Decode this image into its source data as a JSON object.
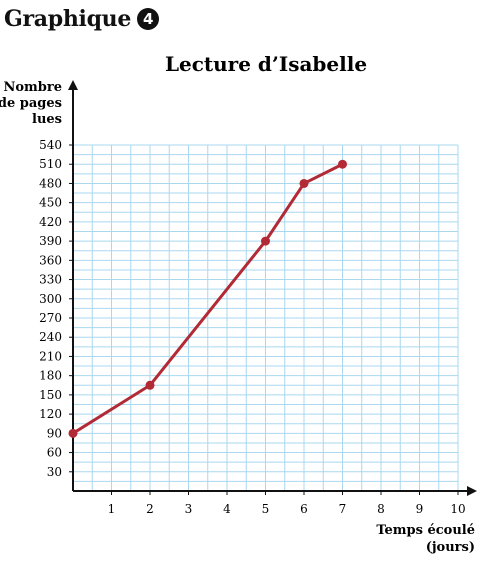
{
  "heading": {
    "text": "Graphique",
    "badge": "4"
  },
  "colors": {
    "grid": "#a9d8ef",
    "line": "#b22a36",
    "axis": "#111111"
  },
  "chart_data": {
    "type": "line",
    "title": "Lecture d’Isabelle",
    "ylabel": [
      "Nombre",
      "de pages",
      "lues"
    ],
    "xlabel": [
      "Temps écoulé",
      "(jours)"
    ],
    "xlim": [
      0,
      10
    ],
    "ylim": [
      0,
      540
    ],
    "x_ticks": [
      1,
      2,
      3,
      4,
      5,
      6,
      7,
      8,
      9,
      10
    ],
    "y_ticks": [
      30,
      60,
      90,
      120,
      150,
      180,
      210,
      240,
      270,
      300,
      330,
      360,
      390,
      420,
      450,
      480,
      510,
      540
    ],
    "grid": true,
    "series": [
      {
        "points": [
          [
            0,
            90
          ],
          [
            2,
            165
          ],
          [
            5,
            390
          ],
          [
            6,
            480
          ],
          [
            7,
            510
          ]
        ]
      }
    ]
  }
}
